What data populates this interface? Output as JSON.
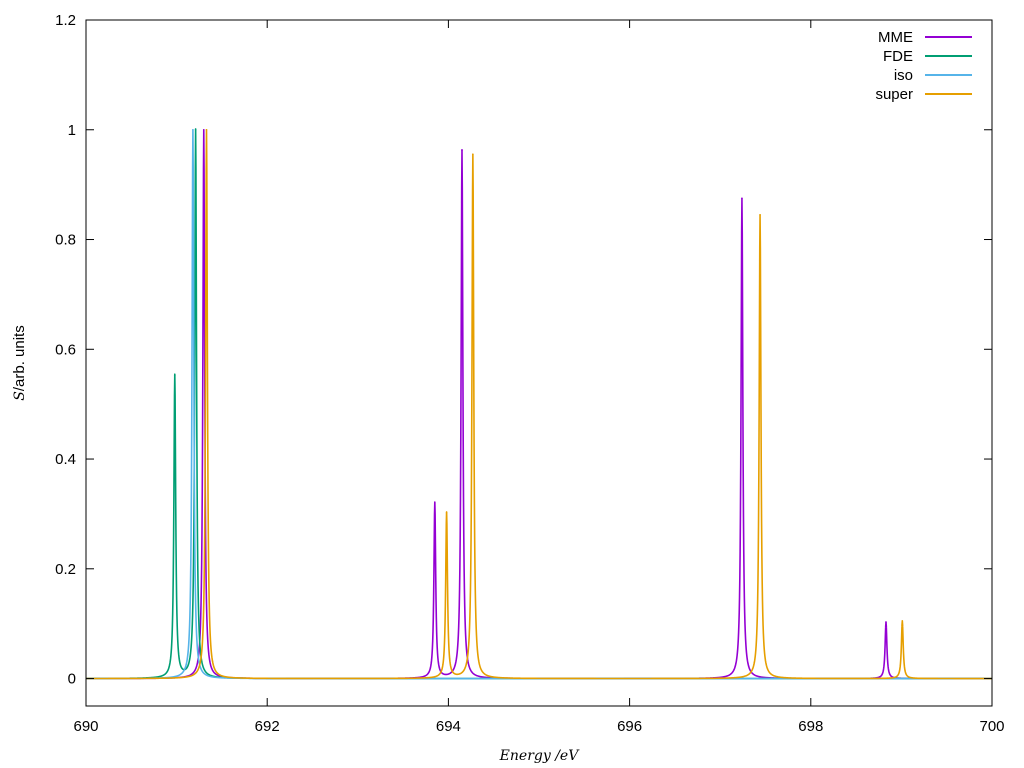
{
  "chart_data": {
    "type": "line",
    "title": "",
    "xlabel": "Energy /eV",
    "ylabel_symbol": "S",
    "ylabel_rest": "/arb. units",
    "xlim": [
      690,
      700
    ],
    "ylim": [
      -0.05,
      1.2
    ],
    "x_ticks": [
      690,
      692,
      694,
      696,
      698,
      700
    ],
    "x_tick_labels": [
      "690",
      "692",
      "694",
      "696",
      "698",
      "700"
    ],
    "y_ticks": [
      0,
      0.2,
      0.4,
      0.6,
      0.8,
      1,
      1.2
    ],
    "y_tick_labels": [
      "0",
      "0.2",
      "0.4",
      "0.6",
      "0.8",
      "1",
      "1.2"
    ],
    "grid": false,
    "legend_position": "top-right",
    "lorentzian_hwhm": 0.012,
    "series": [
      {
        "name": "MME",
        "color": "#9400d3",
        "peaks": [
          {
            "x": 691.3,
            "y": 1.0
          },
          {
            "x": 693.85,
            "y": 0.32
          },
          {
            "x": 694.15,
            "y": 0.963
          },
          {
            "x": 697.24,
            "y": 0.875
          },
          {
            "x": 698.83,
            "y": 0.103
          }
        ]
      },
      {
        "name": "FDE",
        "color": "#009e73",
        "peaks": [
          {
            "x": 690.98,
            "y": 0.552
          },
          {
            "x": 691.21,
            "y": 1.0
          }
        ]
      },
      {
        "name": "iso",
        "color": "#56b4e9",
        "peaks": [
          {
            "x": 691.18,
            "y": 1.0
          }
        ]
      },
      {
        "name": "super",
        "color": "#e69f00",
        "peaks": [
          {
            "x": 691.33,
            "y": 1.0
          },
          {
            "x": 693.98,
            "y": 0.302
          },
          {
            "x": 694.27,
            "y": 0.955
          },
          {
            "x": 697.44,
            "y": 0.845
          },
          {
            "x": 699.01,
            "y": 0.105
          }
        ]
      }
    ]
  }
}
